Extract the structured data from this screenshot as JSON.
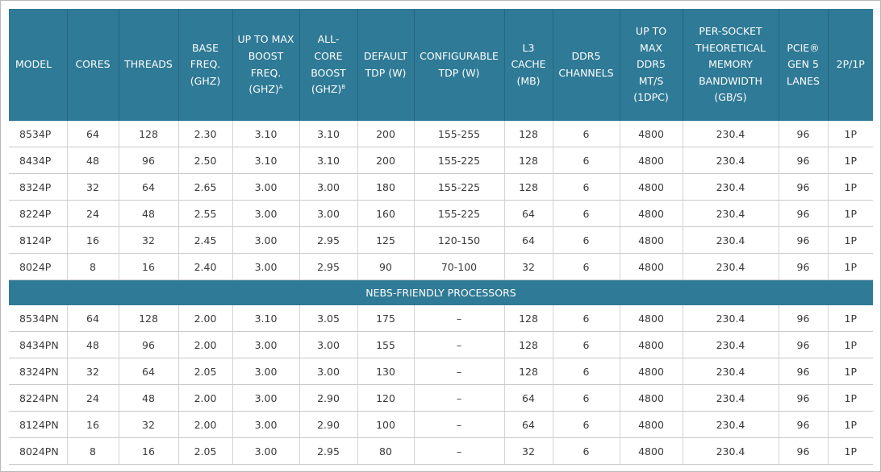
{
  "columns": [
    {
      "lines": [
        "MODEL"
      ]
    },
    {
      "lines": [
        "CORES"
      ]
    },
    {
      "lines": [
        "THREADS"
      ]
    },
    {
      "lines": [
        "BASE",
        "FREQ.",
        "(GHZ)"
      ]
    },
    {
      "lines": [
        "UP TO MAX",
        "BOOST",
        "FREQ.",
        "(GHZ)"
      ],
      "sup": "A"
    },
    {
      "lines": [
        "ALL-",
        "CORE",
        "BOOST",
        "(GHZ)"
      ],
      "sup": "B"
    },
    {
      "lines": [
        "DEFAULT",
        "TDP (W)"
      ]
    },
    {
      "lines": [
        "CONFIGURABLE",
        "TDP (W)"
      ]
    },
    {
      "lines": [
        "L3",
        "CACHE",
        "(MB)"
      ]
    },
    {
      "lines": [
        "DDR5",
        "CHANNELS"
      ]
    },
    {
      "lines": [
        "UP TO",
        "MAX",
        "DDR5",
        "MT/S",
        "(1DPC)"
      ]
    },
    {
      "lines": [
        "PER-SOCKET",
        "THEORETICAL",
        "MEMORY",
        "BANDWIDTH",
        "(GB/S)"
      ]
    },
    {
      "lines": [
        "PCIE®",
        "GEN 5",
        "LANES"
      ]
    },
    {
      "lines": [
        "2P/1P"
      ]
    }
  ],
  "rows": [
    [
      "8534P",
      "64",
      "128",
      "2.30",
      "3.10",
      "3.10",
      "200",
      "155-255",
      "128",
      "6",
      "4800",
      "230.4",
      "96",
      "1P"
    ],
    [
      "8434P",
      "48",
      "96",
      "2.50",
      "3.10",
      "3.10",
      "200",
      "155-225",
      "128",
      "6",
      "4800",
      "230.4",
      "96",
      "1P"
    ],
    [
      "8324P",
      "32",
      "64",
      "2.65",
      "3.00",
      "3.00",
      "180",
      "155-225",
      "128",
      "6",
      "4800",
      "230.4",
      "96",
      "1P"
    ],
    [
      "8224P",
      "24",
      "48",
      "2.55",
      "3.00",
      "3.00",
      "160",
      "155-225",
      "64",
      "6",
      "4800",
      "230.4",
      "96",
      "1P"
    ],
    [
      "8124P",
      "16",
      "32",
      "2.45",
      "3.00",
      "2.95",
      "125",
      "120-150",
      "64",
      "6",
      "4800",
      "230.4",
      "96",
      "1P"
    ],
    [
      "8024P",
      "8",
      "16",
      "2.40",
      "3.00",
      "2.95",
      "90",
      "70-100",
      "32",
      "6",
      "4800",
      "230.4",
      "96",
      "1P"
    ]
  ],
  "section_title": "NEBS-FRIENDLY PROCESSORS",
  "nebs_rows": [
    [
      "8534PN",
      "64",
      "128",
      "2.00",
      "3.10",
      "3.05",
      "175",
      "–",
      "128",
      "6",
      "4800",
      "230.4",
      "96",
      "1P"
    ],
    [
      "8434PN",
      "48",
      "96",
      "2.00",
      "3.00",
      "3.00",
      "155",
      "–",
      "128",
      "6",
      "4800",
      "230.4",
      "96",
      "1P"
    ],
    [
      "8324PN",
      "32",
      "64",
      "2.05",
      "3.00",
      "3.00",
      "130",
      "–",
      "128",
      "6",
      "4800",
      "230.4",
      "96",
      "1P"
    ],
    [
      "8224PN",
      "24",
      "48",
      "2.00",
      "3.00",
      "2.90",
      "120",
      "–",
      "64",
      "6",
      "4800",
      "230.4",
      "96",
      "1P"
    ],
    [
      "8124PN",
      "16",
      "32",
      "2.00",
      "3.00",
      "2.90",
      "100",
      "–",
      "64",
      "6",
      "4800",
      "230.4",
      "96",
      "1P"
    ],
    [
      "8024PN",
      "8",
      "16",
      "2.05",
      "3.00",
      "2.95",
      "80",
      "–",
      "32",
      "6",
      "4800",
      "230.4",
      "96",
      "1P"
    ]
  ],
  "colors": {
    "header_bg": "#2f7a96",
    "header_text": "#ffffff",
    "cell_text": "#3a3a3a",
    "row_border": "#c9c9c9"
  }
}
